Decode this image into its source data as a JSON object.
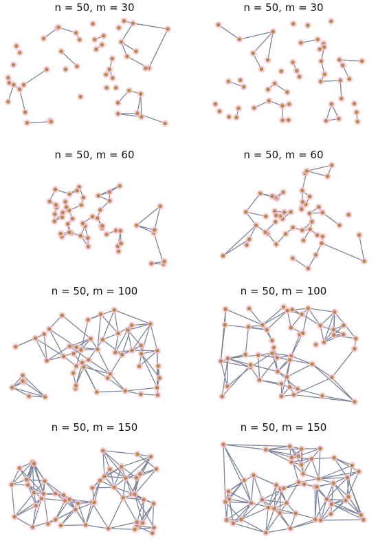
{
  "panels": [
    {
      "title": "n = 50, m = 30",
      "nodes": 50,
      "edges": 30,
      "edge_color": "#7a8499",
      "node_color": "#b5894a",
      "node_halo": "#f4c0cf"
    },
    {
      "title": "n = 50, m = 30",
      "nodes": 50,
      "edges": 30,
      "edge_color": "#7a8499",
      "node_color": "#b5894a",
      "node_halo": "#f4c0cf"
    },
    {
      "title": "n = 50, m = 60",
      "nodes": 50,
      "edges": 60,
      "edge_color": "#7a8499",
      "node_color": "#b5894a",
      "node_halo": "#f4c0cf"
    },
    {
      "title": "n = 50, m = 60",
      "nodes": 50,
      "edges": 60,
      "edge_color": "#7a8499",
      "node_color": "#b5894a",
      "node_halo": "#f4c0cf"
    },
    {
      "title": "n = 50, m = 100",
      "nodes": 50,
      "edges": 100,
      "edge_color": "#7a8499",
      "node_color": "#b5894a",
      "node_halo": "#f4c0cf"
    },
    {
      "title": "n = 50, m = 100",
      "nodes": 50,
      "edges": 100,
      "edge_color": "#7a8499",
      "node_color": "#b5894a",
      "node_halo": "#f4c0cf"
    },
    {
      "title": "n = 50, m = 150",
      "nodes": 50,
      "edges": 150,
      "edge_color": "#7a8499",
      "node_color": "#b5894a",
      "node_halo": "#f4c0cf"
    },
    {
      "title": "n = 50, m = 150",
      "nodes": 50,
      "edges": 150,
      "edge_color": "#7a8499",
      "node_color": "#b5894a",
      "node_halo": "#f4c0cf"
    }
  ]
}
